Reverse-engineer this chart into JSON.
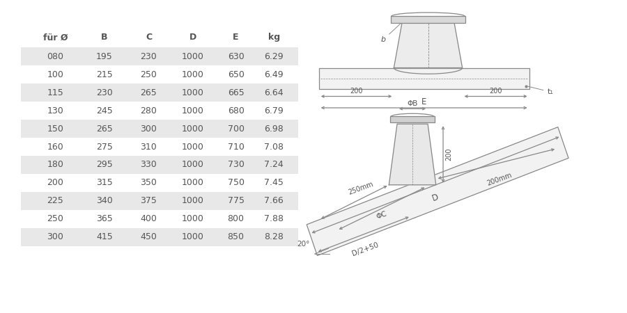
{
  "table_headers": [
    "für Ø",
    "B",
    "C",
    "D",
    "E",
    "kg"
  ],
  "table_data": [
    [
      "080",
      "195",
      "230",
      "1000",
      "630",
      "6.29"
    ],
    [
      "100",
      "215",
      "250",
      "1000",
      "650",
      "6.49"
    ],
    [
      "115",
      "230",
      "265",
      "1000",
      "665",
      "6.64"
    ],
    [
      "130",
      "245",
      "280",
      "1000",
      "680",
      "6.79"
    ],
    [
      "150",
      "265",
      "300",
      "1000",
      "700",
      "6.98"
    ],
    [
      "160",
      "275",
      "310",
      "1000",
      "710",
      "7.08"
    ],
    [
      "180",
      "295",
      "330",
      "1000",
      "730",
      "7.24"
    ],
    [
      "200",
      "315",
      "350",
      "1000",
      "750",
      "7.45"
    ],
    [
      "225",
      "340",
      "375",
      "1000",
      "775",
      "7.66"
    ],
    [
      "250",
      "365",
      "400",
      "1000",
      "800",
      "7.88"
    ],
    [
      "300",
      "415",
      "450",
      "1000",
      "850",
      "8.28"
    ]
  ],
  "row_colors_odd": "#e8e8e8",
  "row_colors_even": "#ffffff",
  "text_color": "#555555",
  "line_color": "#888888",
  "bg_color": "#ffffff"
}
